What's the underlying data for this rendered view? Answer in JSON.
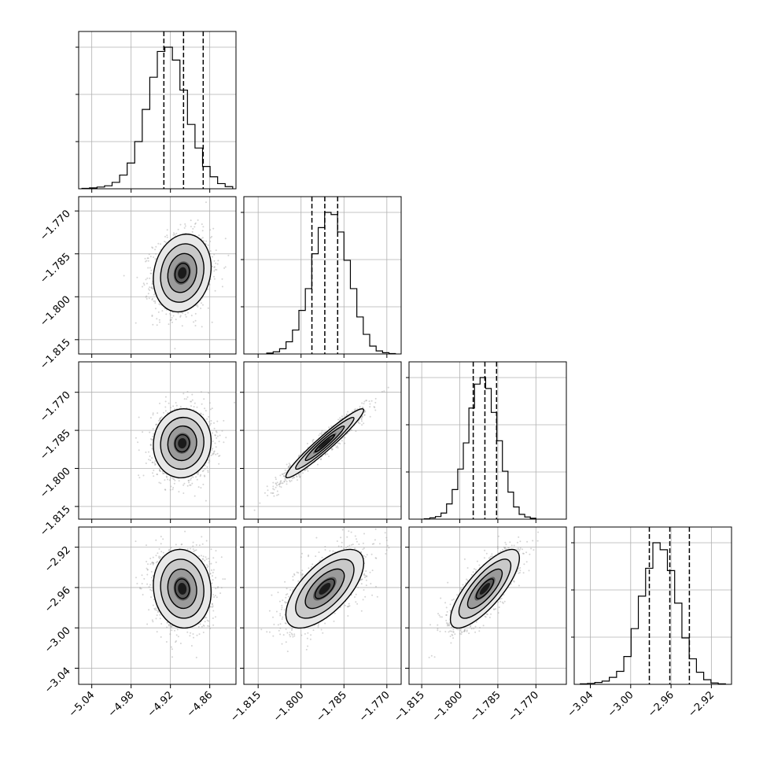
{
  "chart_data": {
    "type": "corner",
    "grid": true,
    "panels_note_colors": {
      "line": "#000000",
      "grid": "#b0b0b0",
      "scatter": "#a0a0a0"
    },
    "parameters": [
      {
        "index": 0,
        "range": [
          -5.06,
          -4.82
        ],
        "ticks": [
          -5.04,
          -4.98,
          -4.92,
          -4.86
        ],
        "tick_labels": [
          "−5.04",
          "−4.98",
          "−4.92",
          "−4.86"
        ]
      },
      {
        "index": 1,
        "range": [
          -1.82,
          -1.765
        ],
        "ticks": [
          -1.815,
          -1.8,
          -1.785,
          -1.77
        ],
        "tick_labels": [
          "−1.815",
          "−1.800",
          "−1.785",
          "−1.770"
        ]
      },
      {
        "index": 2,
        "range": [
          -1.82,
          -1.758
        ],
        "ticks": [
          -1.815,
          -1.8,
          -1.785,
          -1.77
        ],
        "tick_labels": [
          "−1.815",
          "−1.800",
          "−1.785",
          "−1.770"
        ]
      },
      {
        "index": 3,
        "range": [
          -3.056,
          -2.9
        ],
        "ticks": [
          -3.04,
          -3.0,
          -2.96,
          -2.92
        ],
        "tick_labels": [
          "−3.04",
          "−3.00",
          "−2.96",
          "−2.92"
        ]
      }
    ],
    "histograms": [
      {
        "param": 0,
        "bins_range": [
          -5.055,
          -4.825
        ],
        "counts": [
          1,
          2,
          4,
          7,
          15,
          32,
          60,
          110,
          185,
          260,
          320,
          330,
          300,
          230,
          150,
          95,
          52,
          28,
          12,
          5
        ],
        "quantiles": [
          -4.93,
          -4.9,
          -4.87
        ]
      },
      {
        "param": 1,
        "bins_range": [
          -1.812,
          -1.767
        ],
        "counts": [
          2,
          5,
          12,
          28,
          55,
          100,
          150,
          230,
          290,
          325,
          320,
          280,
          215,
          150,
          85,
          45,
          18,
          7,
          3,
          1
        ],
        "quantiles": [
          -1.7962,
          -1.7917,
          -1.7872
        ]
      },
      {
        "param": 2,
        "bins_range": [
          -1.814,
          -1.77
        ],
        "counts": [
          1,
          3,
          6,
          14,
          35,
          68,
          115,
          175,
          255,
          310,
          325,
          300,
          245,
          180,
          110,
          62,
          28,
          11,
          5,
          2
        ],
        "quantiles": [
          -1.7947,
          -1.7901,
          -1.7855
        ]
      },
      {
        "param": 3,
        "bins_range": [
          -3.05,
          -2.906
        ],
        "counts": [
          1,
          2,
          4,
          7,
          15,
          28,
          60,
          120,
          190,
          250,
          305,
          290,
          245,
          175,
          100,
          55,
          26,
          10,
          3,
          1
        ],
        "quantiles": [
          -2.9815,
          -2.9612,
          -2.9418
        ]
      }
    ],
    "scatter_panels": [
      {
        "row": 1,
        "col": 0,
        "mean": [
          -4.902,
          -1.7917
        ],
        "std": [
          0.022,
          0.0068
        ],
        "corr": 0.15
      },
      {
        "row": 2,
        "col": 0,
        "mean": [
          -4.902,
          -1.7901
        ],
        "std": [
          0.022,
          0.0068
        ],
        "corr": 0.05
      },
      {
        "row": 2,
        "col": 1,
        "mean": [
          -1.7917,
          -1.7901
        ],
        "std": [
          0.0068,
          0.0068
        ],
        "corr": 0.96
      },
      {
        "row": 3,
        "col": 0,
        "mean": [
          -4.902,
          -2.9612
        ],
        "std": [
          0.022,
          0.0195
        ],
        "corr": -0.08
      },
      {
        "row": 3,
        "col": 1,
        "mean": [
          -1.7917,
          -2.9612
        ],
        "std": [
          0.0068,
          0.0195
        ],
        "corr": 0.65
      },
      {
        "row": 3,
        "col": 2,
        "mean": [
          -1.7901,
          -2.9612
        ],
        "std": [
          0.0068,
          0.0195
        ],
        "corr": 0.78
      }
    ]
  }
}
